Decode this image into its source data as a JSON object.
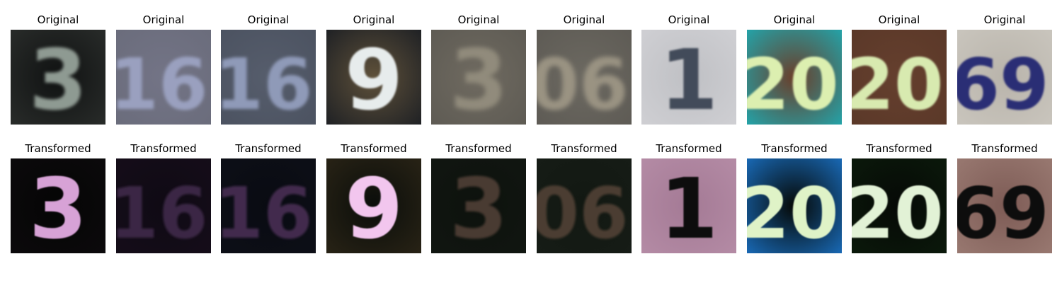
{
  "rows": [
    {
      "label": "Original",
      "items": [
        {
          "title": "Original",
          "digits": "3",
          "bg": "#101212",
          "fg": "#8e9a92",
          "bg2": "#2a2d2b"
        },
        {
          "title": "Original",
          "digits": "16",
          "bg": "#737486",
          "fg": "#9aa0bf",
          "bg2": "#6a6c7b"
        },
        {
          "title": "Original",
          "digits": "16",
          "bg": "#565d6c",
          "fg": "#8f9ab8",
          "bg2": "#4b5260"
        },
        {
          "title": "Original",
          "digits": "9",
          "bg": "#5f513a",
          "fg": "#e7ecec",
          "bg2": "#1b1e23"
        },
        {
          "title": "Original",
          "digits": "3",
          "bg": "#6f6a60",
          "fg": "#918b7b",
          "bg2": "#5d5a53"
        },
        {
          "title": "Original",
          "digits": "06",
          "bg": "#6c6961",
          "fg": "#9a9382",
          "bg2": "#5d5a54"
        },
        {
          "title": "Original",
          "digits": "1",
          "bg": "#bfc0c4",
          "fg": "#434b5a",
          "bg2": "#d0d0d4"
        },
        {
          "title": "Original",
          "digits": "20",
          "bg": "#6a3e2a",
          "fg": "#dcefb0",
          "bg2": "#1fa9b0"
        },
        {
          "title": "Original",
          "digits": "20",
          "bg": "#653f2e",
          "fg": "#d8eab0",
          "bg2": "#5a3828"
        },
        {
          "title": "Original",
          "digits": "69",
          "bg": "#b9b4ab",
          "fg": "#2b2e74",
          "bg2": "#cac6be"
        }
      ]
    },
    {
      "label": "Transformed",
      "items": [
        {
          "title": "Transformed",
          "digits": "3",
          "bg": "#050505",
          "fg": "#d7a2d6",
          "bg2": "#0c0a0c"
        },
        {
          "title": "Transformed",
          "digits": "16",
          "bg": "#0f0a14",
          "fg": "#3b2545",
          "bg2": "#150d19"
        },
        {
          "title": "Transformed",
          "digits": "16",
          "bg": "#090b12",
          "fg": "#422a4d",
          "bg2": "#0d0f17"
        },
        {
          "title": "Transformed",
          "digits": "9",
          "bg": "#0a0d0a",
          "fg": "#f2c6ee",
          "bg2": "#2a2416"
        },
        {
          "title": "Transformed",
          "digits": "3",
          "bg": "#0d120d",
          "fg": "#4a3a33",
          "bg2": "#111611"
        },
        {
          "title": "Transformed",
          "digits": "06",
          "bg": "#121812",
          "fg": "#4c3c33",
          "bg2": "#161c16"
        },
        {
          "title": "Transformed",
          "digits": "1",
          "bg": "#a47a95",
          "fg": "#080808",
          "bg2": "#b58ca6"
        },
        {
          "title": "Transformed",
          "digits": "20",
          "bg": "#050805",
          "fg": "#dff3c7",
          "bg2": "#1a6fc0"
        },
        {
          "title": "Transformed",
          "digits": "20",
          "bg": "#060906",
          "fg": "#e2f2d6",
          "bg2": "#0b1a0b"
        },
        {
          "title": "Transformed",
          "digits": "69",
          "bg": "#7d5b55",
          "fg": "#0c0a0a",
          "bg2": "#9a7a72"
        }
      ]
    }
  ]
}
